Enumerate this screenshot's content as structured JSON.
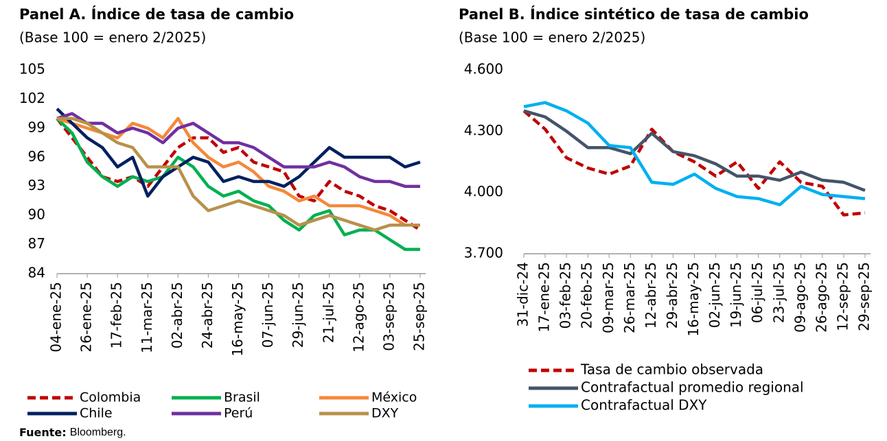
{
  "chart_data": [
    {
      "type": "line",
      "title": "Panel A. Índice de tasa de cambio",
      "subtitle": "(Base 100 = enero 2/2025)",
      "categories": [
        "04-ene-25",
        null,
        "26-ene-25",
        null,
        "17-feb-25",
        null,
        "11-mar-25",
        null,
        "02-abr-25",
        null,
        "24-abr-25",
        null,
        "16-may-25",
        null,
        "07-jun-25",
        null,
        "29-jun-25",
        null,
        "21-jul-25",
        null,
        "12-ago-25",
        null,
        "03-sep-25",
        null,
        "25-sep-25"
      ],
      "ylim": [
        84,
        105
      ],
      "yticks": [
        84,
        87,
        90,
        93,
        96,
        99,
        102,
        105
      ],
      "series": [
        {
          "name": "Colombia",
          "color": "#c00000",
          "dash": true,
          "values": [
            100,
            98,
            96,
            94,
            93.5,
            94,
            93,
            95,
            97,
            98,
            98,
            96.5,
            97,
            95.5,
            95,
            94.5,
            92,
            91.5,
            93.5,
            92.5,
            92,
            91,
            90.5,
            89.5,
            88.5
          ]
        },
        {
          "name": "Brasil",
          "color": "#00b050",
          "values": [
            100,
            98.5,
            95.5,
            94,
            93,
            94,
            93.5,
            94,
            96,
            95,
            93,
            92,
            92.5,
            91.5,
            91,
            89.5,
            88.5,
            90,
            90.5,
            88,
            88.5,
            88.5,
            87.5,
            86.5,
            86.5
          ]
        },
        {
          "name": "México",
          "color": "#f4893a",
          "values": [
            100,
            99.5,
            99,
            98.5,
            98,
            99.5,
            99,
            98,
            100,
            97.5,
            96,
            95,
            95.5,
            94.5,
            93,
            92.5,
            91.5,
            92,
            91,
            91,
            91,
            90.5,
            90,
            89,
            89
          ]
        },
        {
          "name": "Chile",
          "color": "#002060",
          "values": [
            101,
            99.5,
            98,
            97,
            95,
            96,
            92,
            94,
            95,
            96,
            95.5,
            93.5,
            94,
            93.5,
            93.5,
            93,
            94,
            95.5,
            97,
            96,
            96,
            96,
            96,
            95,
            95.5
          ]
        },
        {
          "name": "Perú",
          "color": "#7030a0",
          "values": [
            100,
            100.5,
            99.5,
            99.5,
            98.5,
            99,
            98.5,
            97.5,
            99,
            99.5,
            98.5,
            97.5,
            97.5,
            97,
            96,
            95,
            95,
            95,
            95.5,
            95,
            94,
            93.5,
            93.5,
            93,
            93
          ]
        },
        {
          "name": "DXY",
          "color": "#b8914a",
          "values": [
            100,
            100,
            99.5,
            98.5,
            97.5,
            97,
            95,
            95,
            95,
            92,
            90.5,
            91,
            91.5,
            91,
            90.5,
            90,
            89,
            89.5,
            90,
            89.5,
            89,
            88.5,
            89,
            89,
            89
          ]
        }
      ]
    },
    {
      "type": "line",
      "title": "Panel B. Índice sintético de tasa de cambio",
      "subtitle": "(Base 100 = enero 2/2025)",
      "categories": [
        "31-dic-24",
        "17-ene-25",
        "03-feb-25",
        "20-feb-25",
        "09-mar-25",
        "26-mar-25",
        "12-abr-25",
        "29-abr-25",
        "16-may-25",
        "02-jun-25",
        "19-jun-25",
        "06-jul-25",
        "23-jul-25",
        "09-ago-25",
        "26-ago-25",
        "12-sep-25",
        "29-sep-25"
      ],
      "ylim": [
        3700,
        4600
      ],
      "yticks": [
        {
          "value": 3700,
          "label": "3.700"
        },
        {
          "value": 4000,
          "label": "4.000"
        },
        {
          "value": 4300,
          "label": "4.300"
        },
        {
          "value": 4600,
          "label": "4.600"
        }
      ],
      "series": [
        {
          "name": "Tasa de cambio observada",
          "color": "#c00000",
          "dash": true,
          "values": [
            4400,
            4310,
            4170,
            4120,
            4090,
            4130,
            4310,
            4200,
            4150,
            4080,
            4150,
            4020,
            4150,
            4050,
            4030,
            3890,
            3900
          ]
        },
        {
          "name": "Contrafactual promedio regional",
          "color": "#44546a",
          "values": [
            4400,
            4370,
            4300,
            4220,
            4220,
            4190,
            4290,
            4200,
            4180,
            4140,
            4080,
            4080,
            4060,
            4100,
            4060,
            4050,
            4010
          ]
        },
        {
          "name": "Contrafactual DXY",
          "color": "#00b0f0",
          "values": [
            4420,
            4440,
            4400,
            4340,
            4230,
            4220,
            4050,
            4040,
            4090,
            4020,
            3980,
            3970,
            3940,
            4030,
            3990,
            3980,
            3970
          ]
        }
      ]
    }
  ],
  "source": {
    "label": "Fuente:",
    "text": "Bloomberg."
  }
}
